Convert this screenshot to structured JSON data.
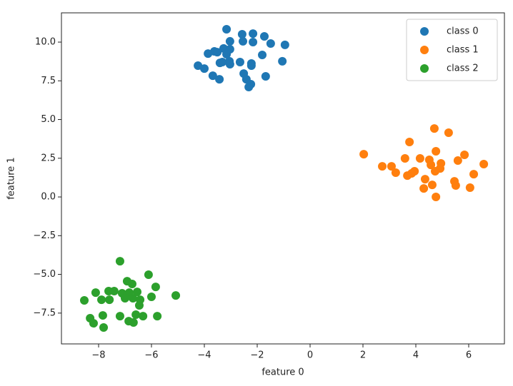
{
  "chart_data": {
    "type": "scatter",
    "xlabel": "feature 0",
    "ylabel": "feature 1",
    "xlim": [
      -9.405,
      7.351
    ],
    "ylim": [
      -9.49,
      11.89
    ],
    "xticks": [
      {
        "value": -8,
        "label": "−8"
      },
      {
        "value": -6,
        "label": "−6"
      },
      {
        "value": -4,
        "label": "−4"
      },
      {
        "value": -2,
        "label": "−2"
      },
      0,
      2,
      4,
      6
    ],
    "yticks": [
      {
        "value": -7.5,
        "label": "−7.5"
      },
      {
        "value": -5,
        "label": "−5.0"
      },
      {
        "value": -2.5,
        "label": "−2.5"
      },
      {
        "value": 0,
        "label": "0.0"
      },
      {
        "value": 2.5,
        "label": "2.5"
      },
      {
        "value": 5,
        "label": "5.0"
      },
      {
        "value": 7.5,
        "label": "7.5"
      },
      {
        "value": 10,
        "label": "10.0"
      }
    ],
    "legend": "upper right",
    "series": [
      {
        "name": "class 0",
        "color": "#1f77b4",
        "x": [
          -3.16,
          -2.57,
          -2.16,
          -1.73,
          -1.49,
          -0.95,
          -3.03,
          -2.54,
          -2.16,
          -3.27,
          -3.03,
          -3.16,
          -3.62,
          -3.51,
          -3.86,
          -1.81,
          -2.65,
          -2.22,
          -3.05,
          -3.32,
          -3.03,
          -3.41,
          -4.24,
          -4.0,
          -1.05,
          -3.68,
          -3.43,
          -2.51,
          -2.41,
          -2.22,
          -1.68,
          -2.24,
          -2.32
        ],
        "values": [
          10.83,
          10.51,
          10.55,
          10.37,
          9.91,
          9.82,
          10.05,
          10.05,
          10.0,
          9.59,
          9.54,
          9.22,
          9.4,
          9.35,
          9.26,
          9.17,
          8.71,
          8.62,
          8.76,
          8.71,
          8.57,
          8.66,
          8.48,
          8.29,
          8.76,
          7.83,
          7.6,
          7.97,
          7.6,
          8.48,
          7.79,
          7.28,
          7.1
        ]
      },
      {
        "name": "class 1",
        "color": "#ff7f0e",
        "x": [
          4.7,
          5.24,
          3.76,
          2.03,
          4.76,
          5.84,
          4.16,
          4.51,
          4.95,
          2.73,
          3.08,
          4.57,
          6.57,
          4.92,
          5.59,
          3.24,
          3.95,
          3.84,
          3.68,
          4.73,
          6.19,
          4.35,
          5.46,
          5.51,
          4.62,
          4.3,
          6.05,
          4.76,
          3.59
        ],
        "values": [
          4.42,
          4.15,
          3.55,
          2.76,
          2.95,
          2.72,
          2.49,
          2.4,
          2.17,
          1.98,
          1.98,
          2.07,
          2.12,
          1.84,
          2.35,
          1.57,
          1.66,
          1.52,
          1.38,
          1.66,
          1.47,
          1.15,
          1.01,
          0.74,
          0.78,
          0.55,
          0.6,
          0.0,
          2.49
        ]
      },
      {
        "name": "class 2",
        "color": "#2ca02c",
        "x": [
          -7.19,
          -6.11,
          -6.92,
          -6.73,
          -5.08,
          -5.84,
          -6.0,
          -7.41,
          -8.11,
          -7.89,
          -7.59,
          -7.11,
          -6.84,
          -6.54,
          -6.7,
          -7.0,
          -6.43,
          -6.46,
          -8.54,
          -7.62,
          -8.32,
          -8.19,
          -7.84,
          -7.19,
          -6.59,
          -6.32,
          -5.78,
          -6.86,
          -6.68,
          -7.81
        ],
        "values": [
          -4.15,
          -5.02,
          -5.44,
          -5.62,
          -6.36,
          -5.81,
          -6.45,
          -6.08,
          -6.18,
          -6.64,
          -6.64,
          -6.22,
          -6.18,
          -6.13,
          -6.54,
          -6.54,
          -6.64,
          -7.0,
          -6.68,
          -6.08,
          -7.83,
          -8.16,
          -7.65,
          -7.7,
          -7.6,
          -7.7,
          -7.7,
          -8.02,
          -8.11,
          -8.43
        ]
      }
    ]
  }
}
